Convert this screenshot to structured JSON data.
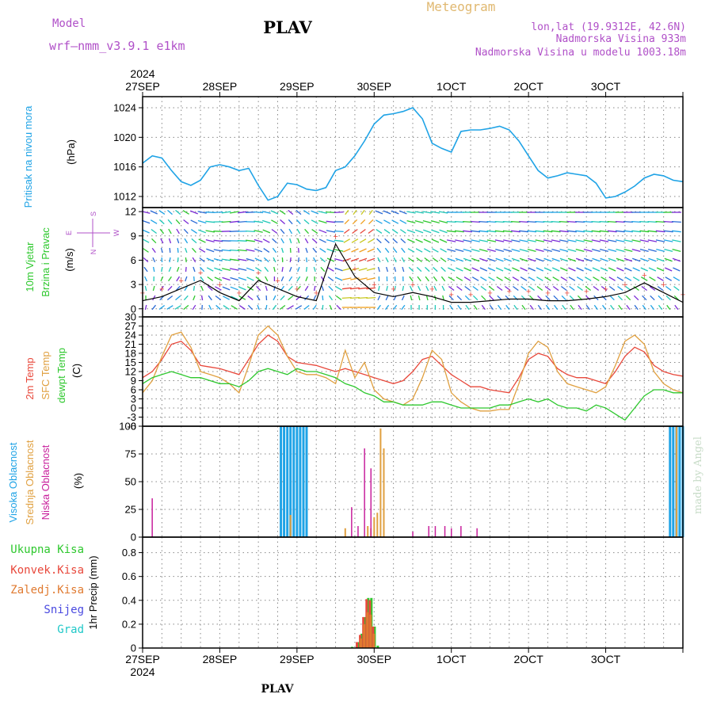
{
  "header": {
    "model_label": "Model",
    "model_name": "wrf—nmm_v3.9.1  e1km",
    "title": "PLAV",
    "meteogram_label": "Meteogram",
    "lonlat": "lon,lat (19.9312E, 42.6N)",
    "elevation": "Nadmorska Visina 933m",
    "model_elevation": "Nadmorska Visina u modelu 1003.18m",
    "year_top": "2024",
    "year_bottom": "2024",
    "footer": "PLAV",
    "credit": "made by Angel"
  },
  "colors": {
    "pressure": "#1fa3e6",
    "t2m": "#e8483b",
    "sfc": "#e0a040",
    "dewpt": "#2ec82e",
    "high_cloud": "#1fa3e6",
    "mid_cloud": "#e0a040",
    "low_cloud": "#c8209c",
    "total_precip": "#2ec82e",
    "conv_precip": "#e8483b",
    "frozen_precip": "#e07a30",
    "snow": "#4a4ae0",
    "graupel": "#20c8c8",
    "model_text": "#b050c8",
    "meteogram_text": "#e0b870"
  },
  "x_ticks": [
    "27SEP",
    "28SEP",
    "29SEP",
    "30SEP",
    "1OCT",
    "2OCT",
    "3OCT"
  ],
  "panels": {
    "pressure": {
      "label": "Pritisak na nivou mora",
      "unit": "(hPa)",
      "yticks": [
        "1012",
        "1016",
        "1020",
        "1024"
      ]
    },
    "wind": {
      "label1": "10m Vjetar",
      "label2": "Brzina i Pravac",
      "unit": "(m/s)",
      "yticks": [
        "0",
        "3",
        "6",
        "9",
        "12"
      ],
      "compass": {
        "n": "N",
        "s": "S",
        "e": "E",
        "w": "W"
      }
    },
    "temp": {
      "label1": "2m Temp",
      "label2": "SFC Temp",
      "label3": "dewpt Temp",
      "unit": "(C)",
      "yticks": [
        "-6",
        "-3",
        "0",
        "3",
        "6",
        "9",
        "12",
        "15",
        "18",
        "21",
        "24",
        "27",
        "30"
      ]
    },
    "cloud": {
      "label1": "Visoka Oblacnost",
      "label2": "Srednja Oblacnost",
      "label3": "Niska Oblacnost",
      "unit": "(%)",
      "yticks": [
        "0",
        "25",
        "50",
        "75",
        "100"
      ]
    },
    "precip": {
      "legend": [
        "Ukupna Kisa",
        "Konvek.Kisa",
        "Zaledj.Kisa",
        "Snijeg",
        "Grad"
      ],
      "unit": "1hr Precip (mm)",
      "yticks": [
        "0",
        "0.2",
        "0.4",
        "0.6",
        "0.8"
      ]
    }
  },
  "chart_data": [
    {
      "type": "line",
      "panel": "pressure",
      "xlabel": "",
      "ylabel": "Pritisak na nivou mora (hPa)",
      "x_unit": "hours since 27SEP 00UTC",
      "x": [
        0,
        3,
        6,
        9,
        12,
        15,
        18,
        21,
        24,
        27,
        30,
        33,
        36,
        39,
        42,
        45,
        48,
        51,
        54,
        57,
        60,
        63,
        66,
        69,
        72,
        75,
        78,
        81,
        84,
        87,
        90,
        93,
        96,
        99,
        102,
        105,
        108,
        111,
        114,
        117,
        120,
        123,
        126,
        129,
        132,
        135,
        138,
        141,
        144,
        147,
        150,
        153,
        156,
        159,
        162,
        165,
        168
      ],
      "series": [
        {
          "name": "Pritisak na nivou mora",
          "values": [
            1016.5,
            1017.5,
            1017.2,
            1015.5,
            1014,
            1013.5,
            1014.2,
            1016,
            1016.3,
            1016,
            1015.5,
            1015.8,
            1013.5,
            1011.5,
            1012,
            1013.8,
            1013.6,
            1013,
            1012.8,
            1013.2,
            1015.5,
            1016,
            1017.5,
            1019.5,
            1021.8,
            1023,
            1023.2,
            1023.5,
            1024,
            1022.5,
            1019.2,
            1018.5,
            1018,
            1020.8,
            1021,
            1021,
            1021.2,
            1021.5,
            1021,
            1019.5,
            1017.5,
            1015.5,
            1014.5,
            1014.8,
            1015.2,
            1015,
            1014.8,
            1013.8,
            1011.8,
            1012,
            1012.6,
            1013.4,
            1014.5,
            1015,
            1014.8,
            1014.2,
            1014
          ]
        }
      ],
      "ylim": [
        1010.5,
        1025.5
      ],
      "grid": true
    },
    {
      "type": "line",
      "panel": "wind",
      "xlabel": "",
      "ylabel": "10m Vjetar Brzina i Pravac (m/s)",
      "x_unit": "hours since 27SEP 00UTC",
      "x": [
        0,
        6,
        12,
        18,
        24,
        30,
        36,
        42,
        48,
        54,
        60,
        66,
        72,
        78,
        84,
        90,
        96,
        102,
        108,
        114,
        120,
        126,
        132,
        138,
        144,
        150,
        156,
        162,
        168
      ],
      "series": [
        {
          "name": "10m Vjetar",
          "values": [
            1,
            1.5,
            2.5,
            3.5,
            2,
            1,
            3.5,
            2.5,
            1.5,
            1,
            8,
            4,
            2,
            1.5,
            2,
            1.5,
            0.8,
            0.8,
            1,
            1.2,
            1.2,
            1,
            1,
            1.2,
            1.5,
            2,
            3.2,
            2,
            0.8
          ]
        }
      ],
      "ylim": [
        -1,
        12.5
      ],
      "grid": true
    },
    {
      "type": "line",
      "panel": "temp",
      "xlabel": "",
      "ylabel": "Temp (C)",
      "x_unit": "hours since 27SEP 00UTC",
      "x": [
        0,
        3,
        6,
        9,
        12,
        15,
        18,
        21,
        24,
        27,
        30,
        33,
        36,
        39,
        42,
        45,
        48,
        51,
        54,
        57,
        60,
        63,
        66,
        69,
        72,
        75,
        78,
        81,
        84,
        87,
        90,
        93,
        96,
        99,
        102,
        105,
        108,
        111,
        114,
        117,
        120,
        123,
        126,
        129,
        132,
        135,
        138,
        141,
        144,
        147,
        150,
        153,
        156,
        159,
        162,
        165,
        168
      ],
      "series": [
        {
          "name": "2m Temp",
          "values": [
            10,
            12,
            16,
            21,
            22,
            19,
            14,
            13.5,
            13,
            12,
            11,
            16,
            21,
            24,
            22,
            17,
            15,
            14.5,
            14,
            13,
            12,
            13,
            12,
            11,
            10,
            9,
            8,
            9,
            12,
            16,
            17,
            14,
            11,
            9,
            7,
            7,
            6,
            5.5,
            5,
            10,
            16,
            18,
            17,
            13,
            11,
            10,
            10,
            9,
            8,
            12,
            17,
            20,
            18.5,
            14,
            12,
            11,
            10.5
          ]
        },
        {
          "name": "SFC Temp",
          "values": [
            5,
            9,
            17,
            24,
            25,
            20,
            12,
            11,
            10,
            8,
            5,
            14,
            24,
            27,
            24,
            17,
            12,
            11,
            11,
            10,
            8,
            19,
            10,
            15,
            6,
            3,
            2,
            1,
            3,
            10,
            19,
            16,
            5,
            2,
            0,
            -1,
            -1,
            -0.5,
            -0.5,
            8,
            18,
            22,
            20,
            12,
            8,
            7,
            6,
            5,
            7,
            14,
            22,
            24,
            21,
            12,
            8,
            6,
            5
          ]
        },
        {
          "name": "dewpt Temp",
          "values": [
            8,
            10,
            11,
            12,
            11,
            10,
            10,
            9,
            8,
            8,
            7,
            9,
            12,
            13,
            12,
            11,
            13,
            12,
            12,
            11,
            10,
            8,
            7,
            5,
            4,
            2,
            2,
            1,
            1,
            1,
            2,
            2,
            1,
            0,
            0,
            0,
            0,
            1,
            1,
            2,
            3,
            2,
            3,
            1,
            0,
            0,
            -1,
            1,
            0,
            -2,
            -4,
            0,
            4,
            6,
            6,
            5,
            5
          ]
        }
      ],
      "ylim": [
        -6,
        30
      ],
      "grid": true
    },
    {
      "type": "bar",
      "panel": "cloud",
      "xlabel": "",
      "ylabel": "Oblacnost (%)",
      "x_unit": "hours since 27SEP 00UTC",
      "series": [
        {
          "name": "Visoka Oblacnost",
          "x": [
            43,
            44,
            45,
            46,
            47,
            48,
            49,
            50,
            51,
            164,
            165,
            166,
            167,
            168
          ],
          "values": [
            100,
            100,
            100,
            100,
            100,
            100,
            100,
            100,
            100,
            100,
            100,
            100,
            100,
            100
          ]
        },
        {
          "name": "Srednja Oblacnost",
          "x": [
            46,
            63,
            70,
            71,
            72,
            73,
            74,
            75,
            166
          ],
          "values": [
            20,
            8,
            10,
            8,
            18,
            22,
            98,
            80,
            100
          ]
        },
        {
          "name": "Niska Oblacnost",
          "x": [
            3,
            65,
            67,
            69,
            71,
            84,
            89,
            91,
            94,
            96,
            99,
            104
          ],
          "values": [
            35,
            27,
            10,
            80,
            62,
            5,
            10,
            10,
            10,
            8,
            10,
            8
          ]
        }
      ],
      "ylim": [
        0,
        100
      ],
      "grid": true
    },
    {
      "type": "bar",
      "panel": "precip",
      "xlabel": "",
      "ylabel": "1hr Precip (mm)",
      "x_unit": "hours since 27SEP 00UTC",
      "series": [
        {
          "name": "Ukupna Kisa",
          "x": [
            65,
            67,
            68,
            69,
            70,
            71,
            72,
            73
          ],
          "values": [
            0.01,
            0.05,
            0.12,
            0.26,
            0.42,
            0.42,
            0.18,
            0.02
          ]
        },
        {
          "name": "Konvek.Kisa",
          "x": [
            67,
            68,
            69,
            70,
            71,
            72
          ],
          "values": [
            0.05,
            0.11,
            0.26,
            0.41,
            0.4,
            0.18
          ]
        },
        {
          "name": "Zaledj.Kisa",
          "x": [
            68,
            69,
            70,
            71,
            72
          ],
          "values": [
            0.08,
            0.2,
            0.3,
            0.28,
            0.12
          ]
        },
        {
          "name": "Snijeg",
          "x": [],
          "values": []
        },
        {
          "name": "Grad",
          "x": [],
          "values": []
        }
      ],
      "ylim": [
        0,
        0.93
      ],
      "grid": true
    }
  ]
}
